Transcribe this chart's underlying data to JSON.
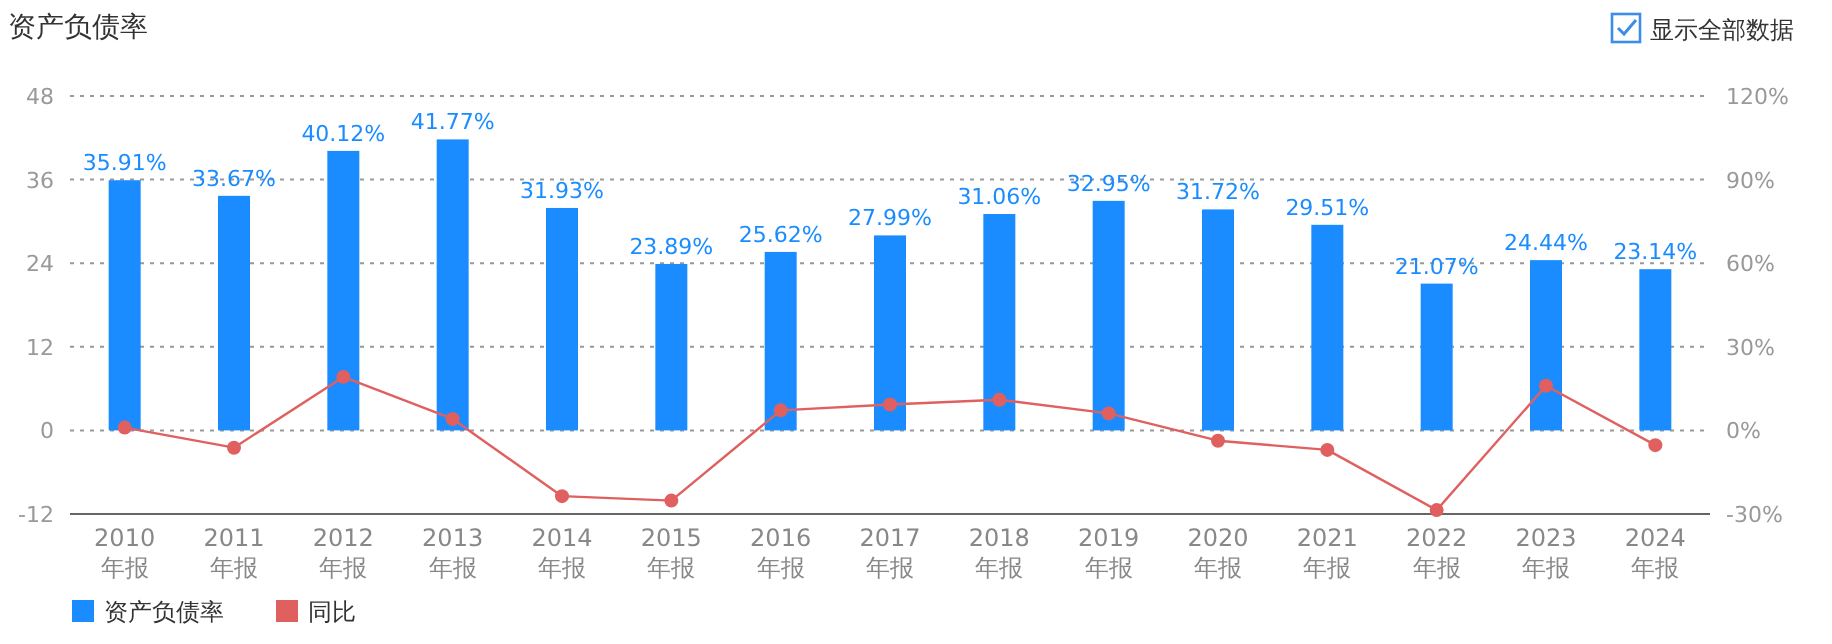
{
  "chart_data": {
    "type": "bar",
    "title": "资产负债率",
    "categories": [
      "2010 年报",
      "2011 年报",
      "2012 年报",
      "2013 年报",
      "2014 年报",
      "2015 年报",
      "2016 年报",
      "2017 年报",
      "2018 年报",
      "2019 年报",
      "2020 年报",
      "2021 年报",
      "2022 年报",
      "2023 年报",
      "2024 年报"
    ],
    "series": [
      {
        "name": "资产负债率",
        "color": "#1a8cff",
        "values": [
          35.91,
          33.67,
          40.12,
          41.77,
          31.93,
          23.89,
          25.62,
          27.99,
          31.06,
          32.95,
          31.72,
          29.51,
          21.07,
          24.44,
          23.14
        ],
        "value_labels": [
          "35.91%",
          "33.67%",
          "40.12%",
          "41.77%",
          "31.93%",
          "23.89%",
          "25.62%",
          "27.99%",
          "31.06%",
          "32.95%",
          "31.72%",
          "29.51%",
          "21.07%",
          "24.44%",
          "23.14%"
        ]
      },
      {
        "name": "同比",
        "type": "line",
        "axis": "y2",
        "color": "#e06060",
        "marker": "circle",
        "values": [
          1.0,
          -6.2,
          19.2,
          4.1,
          -23.6,
          -25.2,
          7.2,
          9.3,
          11.0,
          6.1,
          -3.7,
          -7.0,
          -28.6,
          16.0,
          -5.3
        ]
      }
    ],
    "ylim": [
      -12,
      48
    ],
    "yticks": [
      -12,
      0,
      12,
      24,
      36,
      48
    ],
    "y2lim": [
      -30,
      120
    ],
    "y2ticks": [
      {
        "value": -30,
        "label": "-30%"
      },
      {
        "value": 0,
        "label": "0%"
      },
      {
        "value": 30,
        "label": "30%"
      },
      {
        "value": 60,
        "label": "60%"
      },
      {
        "value": 90,
        "label": "90%"
      },
      {
        "value": 120,
        "label": "120%"
      }
    ],
    "grid": "y",
    "legend": "bottom left",
    "annotations": [
      "显示全部数据"
    ]
  }
}
